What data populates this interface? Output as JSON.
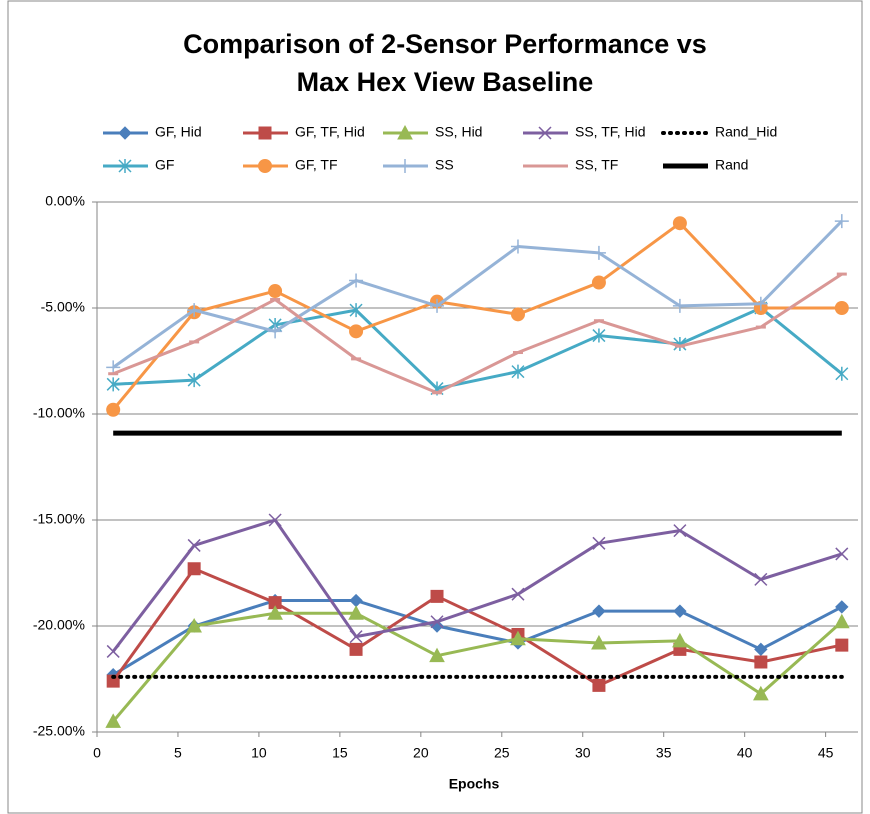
{
  "chart_data": {
    "type": "line",
    "title": [
      "Comparison of 2-Sensor Performance vs",
      "Max Hex View Baseline"
    ],
    "x_label": "Epochs",
    "x": [
      1,
      6,
      11,
      16,
      21,
      26,
      31,
      36,
      41,
      46
    ],
    "xlim": [
      0,
      47
    ],
    "xticks": [
      0,
      5,
      10,
      15,
      20,
      25,
      30,
      35,
      40,
      45
    ],
    "ylim": [
      -25,
      0
    ],
    "yticks": [
      {
        "value": 0,
        "label": "0.00%"
      },
      {
        "value": -5,
        "label": "-5.00%"
      },
      {
        "value": -10,
        "label": "-10.00%"
      },
      {
        "value": -15,
        "label": "-15.00%"
      },
      {
        "value": -20,
        "label": "-20.00%"
      },
      {
        "value": -25,
        "label": "-25.00%"
      }
    ],
    "grid": true,
    "legend": "top",
    "series": [
      {
        "name": "GF, Hid",
        "color": "#4a7ebb",
        "marker": "diamond",
        "values": [
          -22.3,
          -20.0,
          -18.8,
          -18.8,
          -20.0,
          -20.8,
          -19.3,
          -19.3,
          -21.1,
          -19.1
        ]
      },
      {
        "name": "GF, TF, Hid",
        "color": "#be4b48",
        "marker": "square",
        "values": [
          -22.6,
          -17.3,
          -18.9,
          -21.1,
          -18.6,
          -20.4,
          -22.8,
          -21.1,
          -21.7,
          -20.9
        ]
      },
      {
        "name": "SS, Hid",
        "color": "#98b954",
        "marker": "triangle",
        "values": [
          -24.5,
          -20.0,
          -19.4,
          -19.4,
          -21.4,
          -20.6,
          -20.8,
          -20.7,
          -23.2,
          -19.8
        ]
      },
      {
        "name": "SS, TF, Hid",
        "color": "#7d5fa0",
        "marker": "x",
        "values": [
          -21.2,
          -16.2,
          -15.0,
          -20.5,
          -19.8,
          -18.5,
          -16.1,
          -15.5,
          -17.8,
          -16.6
        ]
      },
      {
        "name": "Rand_Hid",
        "color": "#000000",
        "marker": "none",
        "dash": "dotted",
        "width": 4,
        "values": [
          -22.4,
          -22.4,
          -22.4,
          -22.4,
          -22.4,
          -22.4,
          -22.4,
          -22.4,
          -22.4,
          -22.4
        ]
      },
      {
        "name": "GF",
        "color": "#46aac5",
        "marker": "star",
        "values": [
          -8.6,
          -8.4,
          -5.8,
          -5.1,
          -8.8,
          -8.0,
          -6.3,
          -6.7,
          -5.0,
          -8.1
        ]
      },
      {
        "name": "GF, TF",
        "color": "#f79646",
        "marker": "circle",
        "values": [
          -9.8,
          -5.2,
          -4.2,
          -6.1,
          -4.7,
          -5.3,
          -3.8,
          -1.0,
          -5.0,
          -5.0
        ]
      },
      {
        "name": "SS",
        "color": "#95b3d7",
        "marker": "plus",
        "values": [
          -7.8,
          -5.1,
          -6.1,
          -3.7,
          -4.9,
          -2.1,
          -2.4,
          -4.9,
          -4.8,
          -0.9
        ]
      },
      {
        "name": "SS, TF",
        "color": "#d99795",
        "marker": "dash",
        "values": [
          -8.1,
          -6.6,
          -4.6,
          -7.4,
          -9.0,
          -7.1,
          -5.6,
          -6.8,
          -5.9,
          -3.4
        ]
      },
      {
        "name": "Rand",
        "color": "#000000",
        "marker": "none",
        "dash": "solid",
        "width": 5,
        "values": [
          -10.9,
          -10.9,
          -10.9,
          -10.9,
          -10.9,
          -10.9,
          -10.9,
          -10.9,
          -10.9,
          -10.9
        ]
      }
    ]
  }
}
